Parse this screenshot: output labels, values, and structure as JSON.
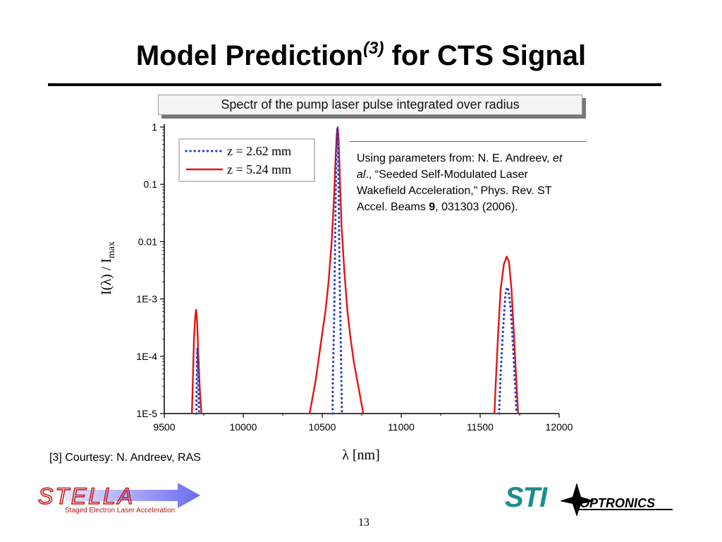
{
  "slide": {
    "title_main": "Model Prediction",
    "title_sup": "(3)",
    "title_rest": " for CTS Signal",
    "page_number": "13",
    "courtesy": "[3] Courtesy: N. Andreev, RAS"
  },
  "annotation": {
    "line1_pre": "Using parameters from: N. E. Andreev, ",
    "line1_em": "et",
    "line2_em": "al",
    "line2_post": "., “Seeded Self-Modulated Laser",
    "line3": "Wakefield Acceleration,” Phys. Rev. ST",
    "line4_pre": "Accel. Beams ",
    "line4_bold": "9",
    "line4_post": ", 031303 (2006)."
  },
  "logos": {
    "stella_text": "STELLA",
    "stella_sub": "Staged Electron Laser Acceleration",
    "sti_text": "STI",
    "sti_sub": "OPTRONICS"
  },
  "chart_data": {
    "type": "line",
    "title": "Spectr of the pump laser pulse integrated over radius",
    "xlabel": "λ [nm]",
    "ylabel_main": "I(λ) / I",
    "ylabel_sub": "max",
    "xlim": [
      9500,
      12000
    ],
    "ylim": [
      1e-05,
      1
    ],
    "yscale": "log",
    "x_ticks": [
      9500,
      10000,
      10500,
      11000,
      11500,
      12000
    ],
    "x_tick_labels": [
      "9500",
      "10000",
      "10500",
      "11000",
      "11500",
      "12000"
    ],
    "y_ticks": [
      1,
      0.1,
      0.01,
      0.001,
      0.0001,
      1e-05
    ],
    "y_tick_labels": [
      "1",
      "0.1",
      "0.01",
      "1E-3",
      "1E-4",
      "1E-5"
    ],
    "legend_position": "top-left",
    "colors": {
      "z1": "#1f3fc4",
      "z2": "#e01515"
    },
    "series": [
      {
        "name": "z = 2.62 mm",
        "style": "dotted",
        "points": [
          [
            9703,
            1e-05
          ],
          [
            9705,
            3e-05
          ],
          [
            9707,
            8e-05
          ],
          [
            9710,
            0.00014
          ],
          [
            9713,
            8e-05
          ],
          [
            9716,
            3e-05
          ],
          [
            9720,
            1e-05
          ],
          [
            10565,
            1e-05
          ],
          [
            10568,
            5e-05
          ],
          [
            10575,
            0.00035
          ],
          [
            10580,
            0.004
          ],
          [
            10585,
            0.05
          ],
          [
            10590,
            0.4
          ],
          [
            10595,
            0.95
          ],
          [
            10600,
            0.5
          ],
          [
            10605,
            0.04
          ],
          [
            10610,
            0.003
          ],
          [
            10615,
            0.0004
          ],
          [
            10620,
            6e-05
          ],
          [
            10625,
            1e-05
          ],
          [
            11620,
            1e-05
          ],
          [
            11630,
            5e-05
          ],
          [
            11645,
            0.0003
          ],
          [
            11660,
            0.0012
          ],
          [
            11670,
            0.0016
          ],
          [
            11680,
            0.0014
          ],
          [
            11695,
            0.0006
          ],
          [
            11710,
            0.00012
          ],
          [
            11722,
            3e-05
          ],
          [
            11730,
            1e-05
          ]
        ]
      },
      {
        "name": "z = 5.24 mm",
        "style": "solid",
        "points": [
          [
            9675,
            1e-05
          ],
          [
            9680,
            3e-05
          ],
          [
            9688,
            0.0002
          ],
          [
            9696,
            0.0005
          ],
          [
            9702,
            0.00065
          ],
          [
            9708,
            0.0004
          ],
          [
            9716,
            0.0001
          ],
          [
            9724,
            3e-05
          ],
          [
            9735,
            1e-05
          ],
          [
            10420,
            1e-05
          ],
          [
            10440,
            2e-05
          ],
          [
            10460,
            4e-05
          ],
          [
            10480,
            0.0001
          ],
          [
            10500,
            0.00025
          ],
          [
            10520,
            0.0006
          ],
          [
            10540,
            0.002
          ],
          [
            10560,
            0.01
          ],
          [
            10575,
            0.06
          ],
          [
            10585,
            0.3
          ],
          [
            10592,
            0.75
          ],
          [
            10598,
            1.0
          ],
          [
            10604,
            0.6
          ],
          [
            10612,
            0.12
          ],
          [
            10622,
            0.02
          ],
          [
            10640,
            0.003
          ],
          [
            10660,
            0.0006
          ],
          [
            10680,
            0.0002
          ],
          [
            10700,
            8e-05
          ],
          [
            10720,
            4e-05
          ],
          [
            10740,
            2e-05
          ],
          [
            10760,
            1e-05
          ],
          [
            11590,
            1e-05
          ],
          [
            11600,
            4e-05
          ],
          [
            11615,
            0.0003
          ],
          [
            11630,
            0.0015
          ],
          [
            11650,
            0.004
          ],
          [
            11668,
            0.0055
          ],
          [
            11682,
            0.0045
          ],
          [
            11698,
            0.0015
          ],
          [
            11712,
            0.0003
          ],
          [
            11725,
            6e-05
          ],
          [
            11740,
            1e-05
          ]
        ]
      }
    ]
  }
}
